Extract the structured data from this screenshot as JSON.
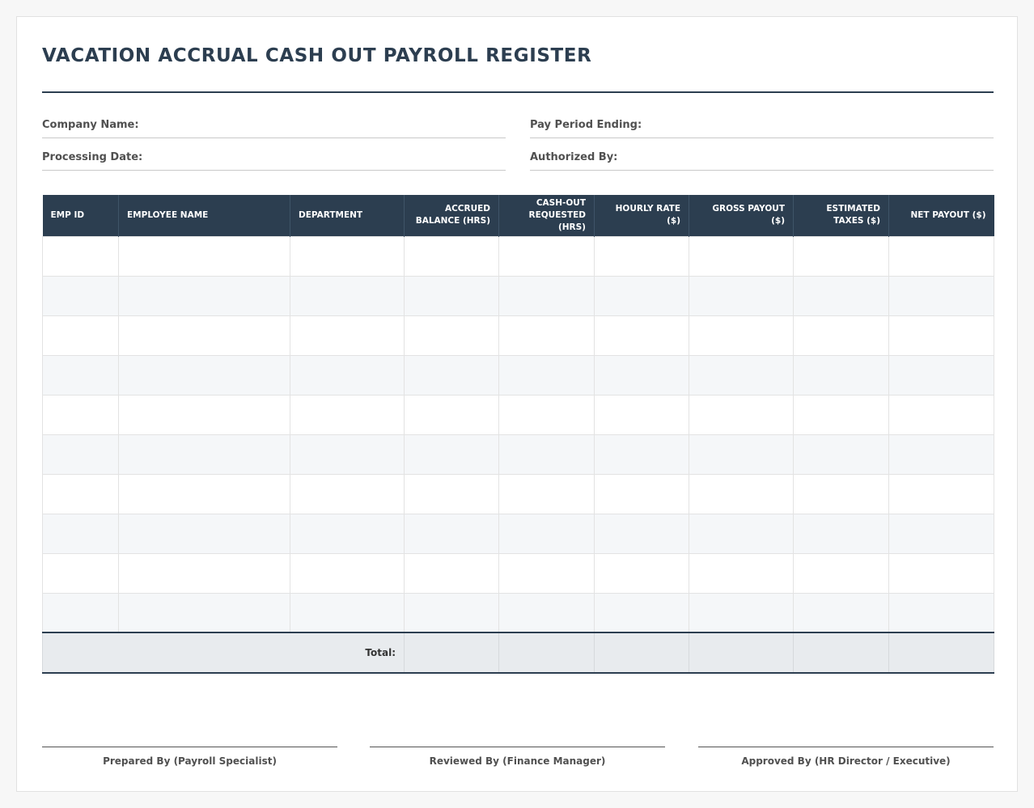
{
  "document": {
    "title": "VACATION ACCRUAL CASH OUT PAYROLL REGISTER"
  },
  "fields": {
    "company_name": {
      "label": "Company Name:",
      "value": ""
    },
    "pay_period_ending": {
      "label": "Pay Period Ending:",
      "value": ""
    },
    "processing_date": {
      "label": "Processing Date:",
      "value": ""
    },
    "authorized_by": {
      "label": "Authorized By:",
      "value": ""
    }
  },
  "table": {
    "columns": [
      "EMP ID",
      "EMPLOYEE NAME",
      "DEPARTMENT",
      "ACCRUED BALANCE (HRS)",
      "CASH-OUT REQUESTED (HRS)",
      "HOURLY RATE ($)",
      "GROSS PAYOUT ($)",
      "ESTIMATED TAXES ($)",
      "NET PAYOUT ($)"
    ],
    "rows": [
      [
        "",
        "",
        "",
        "",
        "",
        "",
        "",
        "",
        ""
      ],
      [
        "",
        "",
        "",
        "",
        "",
        "",
        "",
        "",
        ""
      ],
      [
        "",
        "",
        "",
        "",
        "",
        "",
        "",
        "",
        ""
      ],
      [
        "",
        "",
        "",
        "",
        "",
        "",
        "",
        "",
        ""
      ],
      [
        "",
        "",
        "",
        "",
        "",
        "",
        "",
        "",
        ""
      ],
      [
        "",
        "",
        "",
        "",
        "",
        "",
        "",
        "",
        ""
      ],
      [
        "",
        "",
        "",
        "",
        "",
        "",
        "",
        "",
        ""
      ],
      [
        "",
        "",
        "",
        "",
        "",
        "",
        "",
        "",
        ""
      ],
      [
        "",
        "",
        "",
        "",
        "",
        "",
        "",
        "",
        ""
      ],
      [
        "",
        "",
        "",
        "",
        "",
        "",
        "",
        "",
        ""
      ]
    ],
    "total_label": "Total:",
    "totals": [
      "",
      "",
      "",
      "",
      "",
      ""
    ]
  },
  "signatures": {
    "prepared_by": "Prepared By (Payroll Specialist)",
    "reviewed_by": "Reviewed By (Finance Manager)",
    "approved_by": "Approved By (HR Director / Executive)"
  },
  "colors": {
    "header_bg": "#2c3e50",
    "alt_row_bg": "#f5f7f9",
    "total_row_bg": "#e8ebee"
  }
}
